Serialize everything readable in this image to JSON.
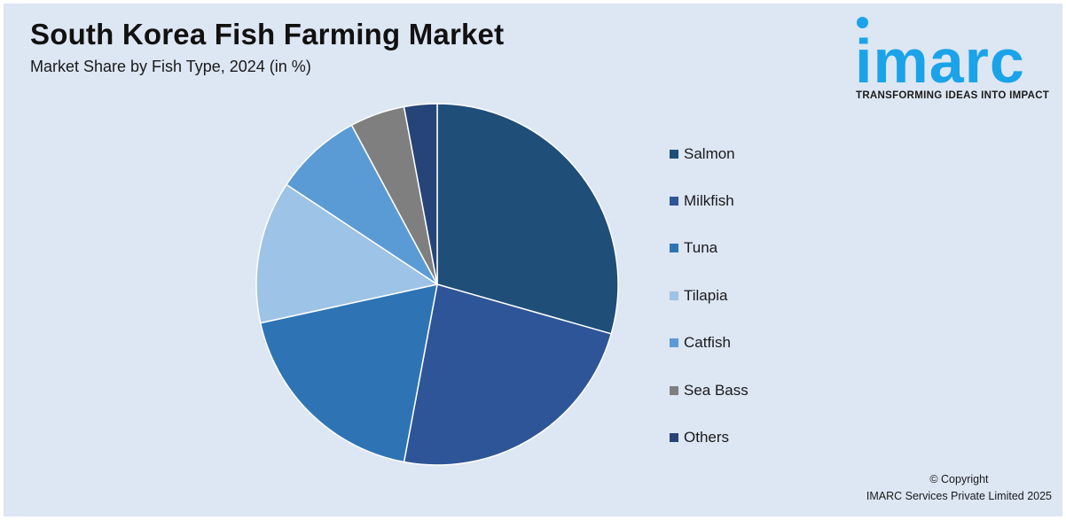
{
  "header": {
    "title": "South Korea Fish Farming Market",
    "subtitle": "Market Share by Fish Type, 2024 (in %)"
  },
  "logo": {
    "wordmark": "imarc",
    "tagline": "TRANSFORMING IDEAS INTO IMPACT",
    "color": "#1aa3e8"
  },
  "footer": {
    "copyright_line1": "© Copyright",
    "copyright_line2": "IMARC Services Private Limited 2025"
  },
  "chart_data": {
    "type": "pie",
    "title": "South Korea Fish Farming Market",
    "subtitle": "Market Share by Fish Type, 2024 (in %)",
    "legend_position": "right",
    "categories": [
      "Salmon",
      "Milkfish",
      "Tuna",
      "Tilapia",
      "Catfish",
      "Sea Bass",
      "Others"
    ],
    "values": [
      30,
      24,
      19,
      13,
      8,
      5,
      3
    ],
    "colors": [
      "#1f4e79",
      "#2e5597",
      "#2e74b5",
      "#9dc3e6",
      "#5b9bd5",
      "#7f7f7f",
      "#264478"
    ]
  }
}
